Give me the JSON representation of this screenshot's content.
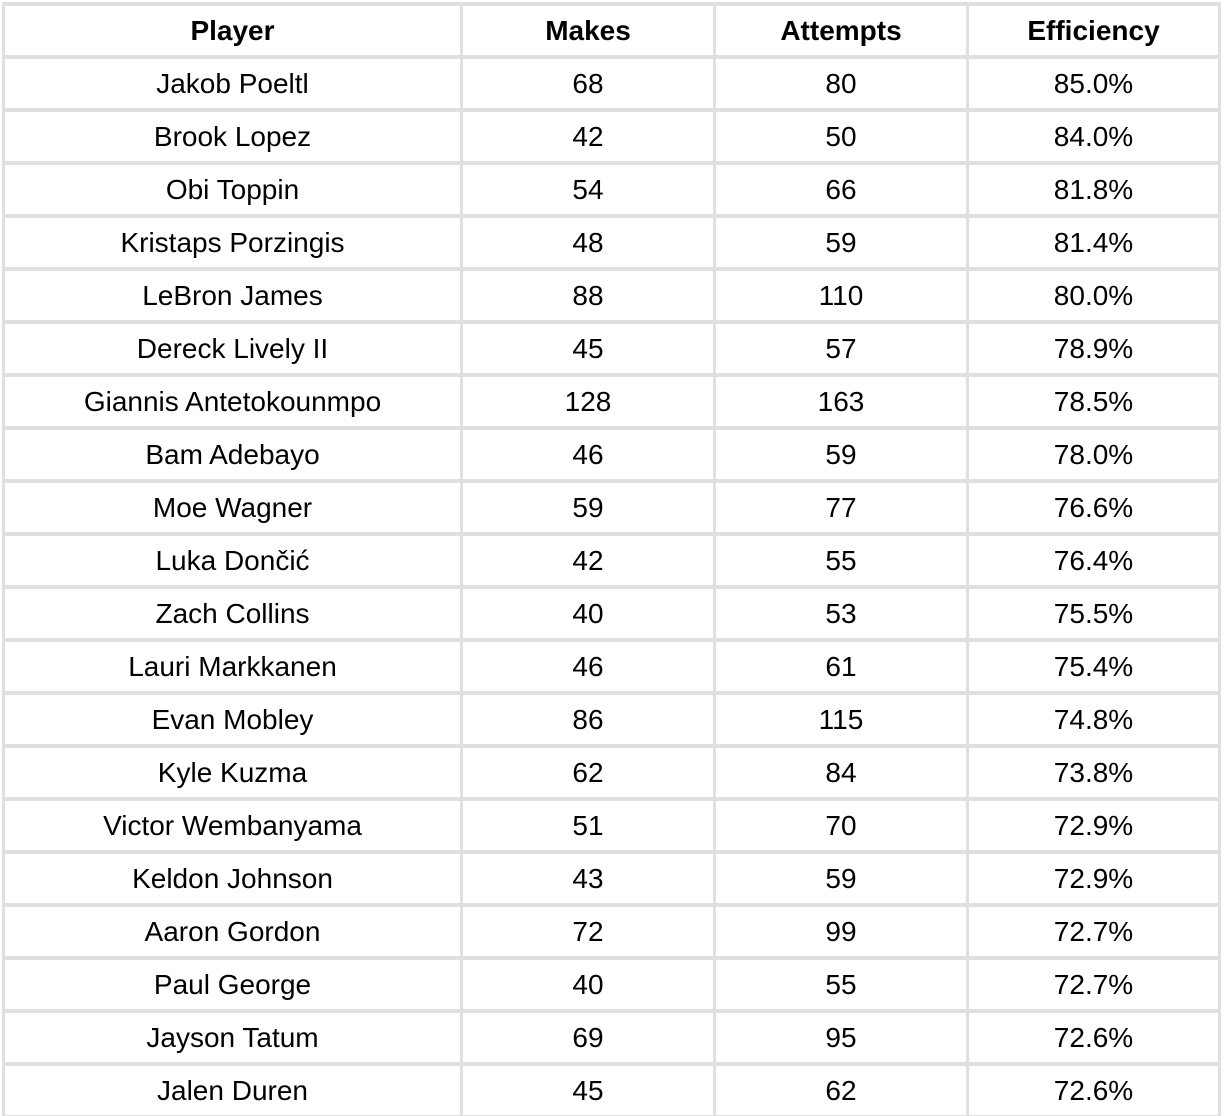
{
  "colors": {
    "gridline": "#e0e0e0",
    "cell_background": "#ffffff",
    "text": "#000000"
  },
  "table": {
    "columns": [
      "Player",
      "Makes",
      "Attempts",
      "Efficiency"
    ],
    "rows": [
      {
        "player": "Jakob Poeltl",
        "makes": "68",
        "attempts": "80",
        "efficiency": "85.0%"
      },
      {
        "player": "Brook Lopez",
        "makes": "42",
        "attempts": "50",
        "efficiency": "84.0%"
      },
      {
        "player": "Obi Toppin",
        "makes": "54",
        "attempts": "66",
        "efficiency": "81.8%"
      },
      {
        "player": "Kristaps Porzingis",
        "makes": "48",
        "attempts": "59",
        "efficiency": "81.4%"
      },
      {
        "player": "LeBron James",
        "makes": "88",
        "attempts": "110",
        "efficiency": "80.0%"
      },
      {
        "player": "Dereck Lively II",
        "makes": "45",
        "attempts": "57",
        "efficiency": "78.9%"
      },
      {
        "player": "Giannis Antetokounmpo",
        "makes": "128",
        "attempts": "163",
        "efficiency": "78.5%"
      },
      {
        "player": "Bam Adebayo",
        "makes": "46",
        "attempts": "59",
        "efficiency": "78.0%"
      },
      {
        "player": "Moe Wagner",
        "makes": "59",
        "attempts": "77",
        "efficiency": "76.6%"
      },
      {
        "player": "Luka Dončić",
        "makes": "42",
        "attempts": "55",
        "efficiency": "76.4%"
      },
      {
        "player": "Zach Collins",
        "makes": "40",
        "attempts": "53",
        "efficiency": "75.5%"
      },
      {
        "player": "Lauri Markkanen",
        "makes": "46",
        "attempts": "61",
        "efficiency": "75.4%"
      },
      {
        "player": "Evan Mobley",
        "makes": "86",
        "attempts": "115",
        "efficiency": "74.8%"
      },
      {
        "player": "Kyle Kuzma",
        "makes": "62",
        "attempts": "84",
        "efficiency": "73.8%"
      },
      {
        "player": "Victor Wembanyama",
        "makes": "51",
        "attempts": "70",
        "efficiency": "72.9%"
      },
      {
        "player": "Keldon Johnson",
        "makes": "43",
        "attempts": "59",
        "efficiency": "72.9%"
      },
      {
        "player": "Aaron Gordon",
        "makes": "72",
        "attempts": "99",
        "efficiency": "72.7%"
      },
      {
        "player": "Paul George",
        "makes": "40",
        "attempts": "55",
        "efficiency": "72.7%"
      },
      {
        "player": "Jayson Tatum",
        "makes": "69",
        "attempts": "95",
        "efficiency": "72.6%"
      },
      {
        "player": "Jalen Duren",
        "makes": "45",
        "attempts": "62",
        "efficiency": "72.6%"
      }
    ]
  }
}
